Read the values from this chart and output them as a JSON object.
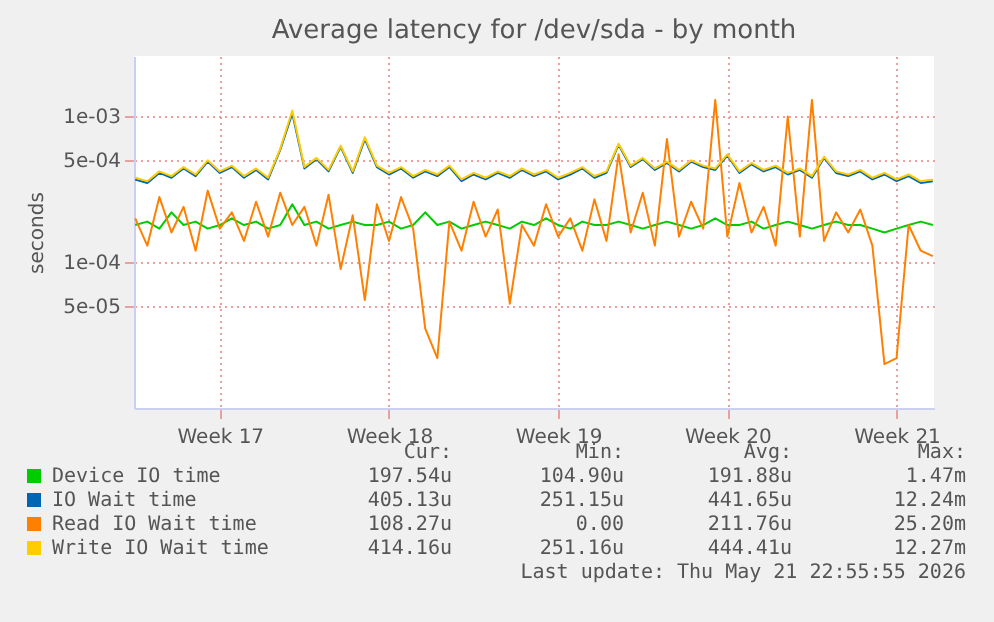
{
  "chart_data": {
    "type": "line",
    "title": "Average latency for /dev/sda - by month",
    "ylabel": "seconds",
    "log": "y",
    "grid": true,
    "legend": "bottom",
    "ylim": [
      1e-05,
      0.0026
    ],
    "yticks": [
      {
        "value": 5e-05,
        "label": "5e-05"
      },
      {
        "value": 0.0001,
        "label": "1e-04"
      },
      {
        "value": 0.0005,
        "label": "5e-04"
      },
      {
        "value": 0.001,
        "label": "1e-03"
      }
    ],
    "categories": [
      null,
      null,
      null,
      null,
      null,
      null,
      null,
      "Week 17",
      null,
      null,
      null,
      null,
      null,
      null,
      null,
      null,
      null,
      null,
      null,
      null,
      null,
      "Week 18",
      null,
      null,
      null,
      null,
      null,
      null,
      null,
      null,
      null,
      null,
      null,
      null,
      null,
      "Week 19",
      null,
      null,
      null,
      null,
      null,
      null,
      null,
      null,
      null,
      null,
      null,
      null,
      null,
      "Week 20",
      null,
      null,
      null,
      null,
      null,
      null,
      null,
      null,
      null,
      null,
      null,
      null,
      null,
      "Week 21",
      null,
      null,
      null
    ],
    "series": [
      {
        "name": "Device IO time",
        "color": "#00cc00",
        "values": [
          0.00018,
          0.00019,
          0.00017,
          0.00022,
          0.00018,
          0.00019,
          0.00017,
          0.00018,
          0.0002,
          0.00018,
          0.00019,
          0.00017,
          0.00018,
          0.00025,
          0.00018,
          0.00019,
          0.00017,
          0.00018,
          0.00019,
          0.00018,
          0.00018,
          0.00019,
          0.00017,
          0.00018,
          0.00022,
          0.00018,
          0.00019,
          0.00017,
          0.00018,
          0.00019,
          0.00018,
          0.00017,
          0.00019,
          0.00018,
          0.0002,
          0.00018,
          0.00017,
          0.00019,
          0.00018,
          0.00018,
          0.00019,
          0.00018,
          0.00017,
          0.00018,
          0.00019,
          0.00018,
          0.00017,
          0.00018,
          0.0002,
          0.00018,
          0.00018,
          0.00019,
          0.00017,
          0.00018,
          0.00019,
          0.00018,
          0.00017,
          0.00018,
          0.00019,
          0.00018,
          0.00018,
          0.00017,
          0.00016,
          0.00017,
          0.00018,
          0.00019,
          0.00018
        ]
      },
      {
        "name": "IO Wait time",
        "color": "#0066b3",
        "values": [
          0.00037,
          0.00035,
          0.00041,
          0.00038,
          0.00044,
          0.00039,
          0.00049,
          0.00041,
          0.00045,
          0.00038,
          0.00043,
          0.00037,
          0.00059,
          0.00105,
          0.00044,
          0.00051,
          0.00042,
          0.00062,
          0.00041,
          0.0007,
          0.00045,
          0.0004,
          0.00044,
          0.00038,
          0.00042,
          0.00039,
          0.00045,
          0.00036,
          0.0004,
          0.00037,
          0.00041,
          0.00038,
          0.00043,
          0.00039,
          0.00042,
          0.00037,
          0.0004,
          0.00044,
          0.00038,
          0.00041,
          0.00064,
          0.00045,
          0.00051,
          0.00043,
          0.00048,
          0.00042,
          0.00049,
          0.00045,
          0.00043,
          0.00054,
          0.00041,
          0.00047,
          0.00042,
          0.00045,
          0.0004,
          0.00043,
          0.00038,
          0.00052,
          0.00041,
          0.00039,
          0.00042,
          0.00037,
          0.0004,
          0.00036,
          0.00039,
          0.00035,
          0.00036
        ]
      },
      {
        "name": "Read IO Wait time",
        "color": "#ff8000",
        "values": [
          0.0002,
          0.00013,
          0.00028,
          0.00016,
          0.00024,
          0.00012,
          0.00031,
          0.00017,
          0.00022,
          0.00014,
          0.00026,
          0.00015,
          0.0003,
          0.00018,
          0.00024,
          0.00013,
          0.00029,
          9e-05,
          0.00021,
          5.5e-05,
          0.00025,
          0.00014,
          0.00028,
          0.00017,
          3.5e-05,
          2.2e-05,
          0.00019,
          0.00012,
          0.00026,
          0.00015,
          0.00023,
          5.2e-05,
          0.00018,
          0.00013,
          0.00025,
          0.00015,
          0.0002,
          0.00012,
          0.00027,
          0.00014,
          0.00055,
          0.00016,
          0.0003,
          0.00013,
          0.0007,
          0.00015,
          0.00026,
          0.00017,
          0.0013,
          0.00015,
          0.00035,
          0.00016,
          0.00024,
          0.00013,
          0.001,
          0.00015,
          0.0013,
          0.00014,
          0.00022,
          0.00016,
          0.00023,
          0.00013,
          2e-05,
          2.2e-05,
          0.00018,
          0.00012,
          0.00011
        ]
      },
      {
        "name": "Write IO Wait time",
        "color": "#ffcc00",
        "values": [
          0.00038,
          0.00036,
          0.00042,
          0.00039,
          0.00045,
          0.0004,
          0.0005,
          0.00042,
          0.00046,
          0.00039,
          0.00044,
          0.00038,
          0.0006,
          0.0011,
          0.00045,
          0.00052,
          0.00043,
          0.00063,
          0.00042,
          0.00072,
          0.00046,
          0.00041,
          0.00045,
          0.00039,
          0.00043,
          0.0004,
          0.00046,
          0.00037,
          0.00041,
          0.00038,
          0.00042,
          0.00039,
          0.00044,
          0.0004,
          0.00043,
          0.00038,
          0.00041,
          0.00045,
          0.00039,
          0.00042,
          0.00065,
          0.00046,
          0.00052,
          0.00044,
          0.00049,
          0.00043,
          0.0005,
          0.00046,
          0.00044,
          0.00055,
          0.00042,
          0.00048,
          0.00043,
          0.00046,
          0.00041,
          0.00044,
          0.00039,
          0.00053,
          0.00042,
          0.0004,
          0.00043,
          0.00038,
          0.00041,
          0.00037,
          0.0004,
          0.00036,
          0.00037
        ]
      }
    ],
    "annotations": [
      "Cur:",
      "Min:",
      "Avg:",
      "Max:",
      "197.54u",
      "104.90u",
      "191.88u",
      "1.47m",
      "405.13u",
      "251.15u",
      "441.65u",
      "12.24m",
      "108.27u",
      "0.00",
      "211.76u",
      "25.20m",
      "414.16u",
      "251.16u",
      "444.41u",
      "12.27m",
      "Last update: Thu May 21 22:55:55 2026"
    ]
  }
}
